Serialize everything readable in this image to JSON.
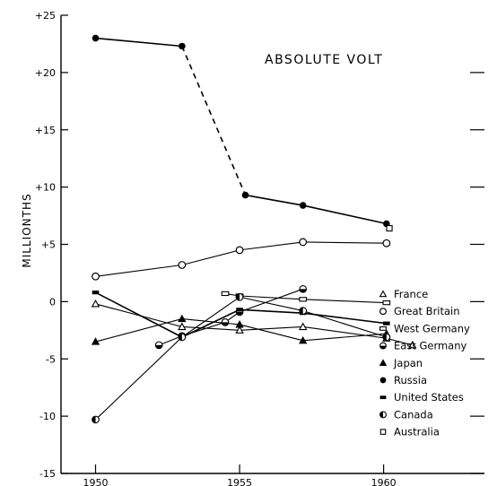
{
  "chart_data": {
    "type": "line",
    "title": "ABSOLUTE VOLT",
    "xlabel": "",
    "ylabel": "MILLIONTHS",
    "xlim": [
      1948.8,
      1963.5
    ],
    "ylim": [
      -15,
      25
    ],
    "xticks": [
      1950,
      1955,
      1960
    ],
    "yticks": [
      25,
      20,
      15,
      10,
      5,
      0,
      -5,
      -10,
      -15
    ],
    "ytick_labels": [
      "+25",
      "+20",
      "+15",
      "+10",
      "+5",
      "0",
      "-5",
      "-10",
      "-15"
    ],
    "grid": false,
    "legend_position": "right",
    "series": [
      {
        "name": "France",
        "marker": "open-triangle",
        "color": "#000000",
        "points": [
          [
            1950.0,
            -0.2
          ],
          [
            1953.0,
            -2.2
          ],
          [
            1955.0,
            -2.5
          ],
          [
            1957.2,
            -2.2
          ],
          [
            1960.1,
            -3.2
          ],
          [
            1961.0,
            -3.8
          ]
        ]
      },
      {
        "name": "Great Britain",
        "marker": "open-circle",
        "color": "#000000",
        "points": [
          [
            1950.0,
            2.2
          ],
          [
            1953.0,
            3.2
          ],
          [
            1955.0,
            4.5
          ],
          [
            1957.2,
            5.2
          ],
          [
            1960.1,
            5.1
          ]
        ]
      },
      {
        "name": "West Germany",
        "marker": "open-rect",
        "color": "#000000",
        "points": [
          [
            1954.5,
            0.7
          ],
          [
            1955.0,
            0.5
          ],
          [
            1957.2,
            0.2
          ],
          [
            1960.1,
            -0.1
          ]
        ]
      },
      {
        "name": "East Germany",
        "marker": "half-circle-h",
        "color": "#000000",
        "points": [
          [
            1952.2,
            -3.8
          ],
          [
            1953.0,
            -3.0
          ],
          [
            1954.5,
            -1.8
          ],
          [
            1955.0,
            -0.9
          ],
          [
            1957.2,
            1.1
          ]
        ]
      },
      {
        "name": "Japan",
        "marker": "filled-triangle",
        "color": "#000000",
        "points": [
          [
            1950.0,
            -3.5
          ],
          [
            1953.0,
            -1.5
          ],
          [
            1955.0,
            -2.0
          ],
          [
            1957.2,
            -3.4
          ],
          [
            1960.1,
            -2.8
          ]
        ]
      },
      {
        "name": "Russia",
        "marker": "filled-circle",
        "color": "#000000",
        "points": [
          [
            1950.0,
            23.0
          ],
          [
            1953.0,
            22.3
          ],
          [
            1955.2,
            9.3
          ],
          [
            1957.2,
            8.4
          ],
          [
            1960.1,
            6.8
          ]
        ],
        "dashed_segments": [
          1
        ]
      },
      {
        "name": "United States",
        "marker": "filled-rect",
        "color": "#000000",
        "points": [
          [
            1950.0,
            0.8
          ],
          [
            1953.0,
            -3.1
          ],
          [
            1955.0,
            -0.7
          ],
          [
            1957.2,
            -1.0
          ],
          [
            1960.1,
            -1.9
          ]
        ]
      },
      {
        "name": "Canada",
        "marker": "half-circle-v",
        "color": "#000000",
        "points": [
          [
            1950.0,
            -10.3
          ],
          [
            1953.0,
            -3.1
          ],
          [
            1955.0,
            0.4
          ],
          [
            1957.2,
            -0.8
          ],
          [
            1960.1,
            -3.1
          ]
        ]
      },
      {
        "name": "Australia",
        "marker": "open-square",
        "color": "#000000",
        "points": [
          [
            1960.2,
            6.4
          ]
        ]
      }
    ]
  }
}
